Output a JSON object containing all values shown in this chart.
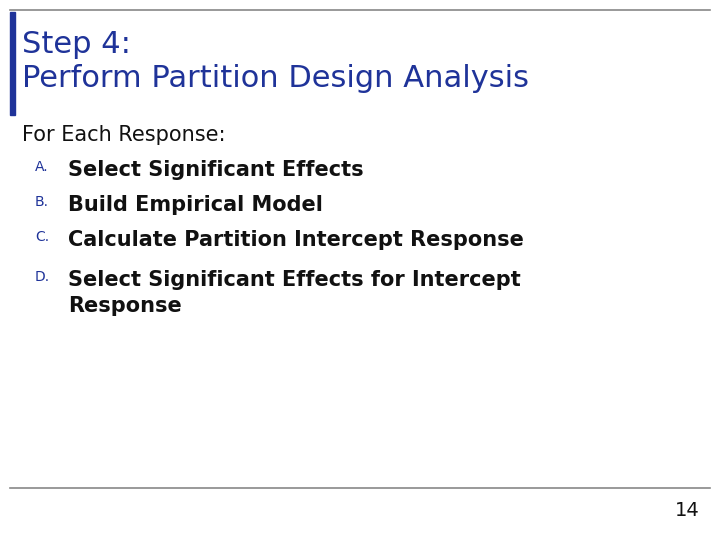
{
  "title_line1": "Step 4:",
  "title_line2": "Perform Partition Design Analysis",
  "title_color": "#1F3399",
  "title_fontsize": 22,
  "title_fontweight": "normal",
  "body_intro": "For Each Response:",
  "body_intro_fontsize": 15,
  "body_intro_fontweight": "normal",
  "items": [
    {
      "label": "A.",
      "text": "Select Significant Effects"
    },
    {
      "label": "B.",
      "text": "Build Empirical Model"
    },
    {
      "label": "C.",
      "text": "Calculate Partition Intercept Response"
    },
    {
      "label": "D.",
      "text": "Select Significant Effects for Intercept\nResponse"
    }
  ],
  "label_color": "#1F3399",
  "body_fontsize": 15,
  "body_fontweight": "bold",
  "label_fontsize": 10,
  "background_color": "#FFFFFF",
  "line_color": "#888888",
  "page_number": "14",
  "page_number_fontsize": 14,
  "left_bar_color": "#1F3399",
  "top_bar_color": "#888888"
}
